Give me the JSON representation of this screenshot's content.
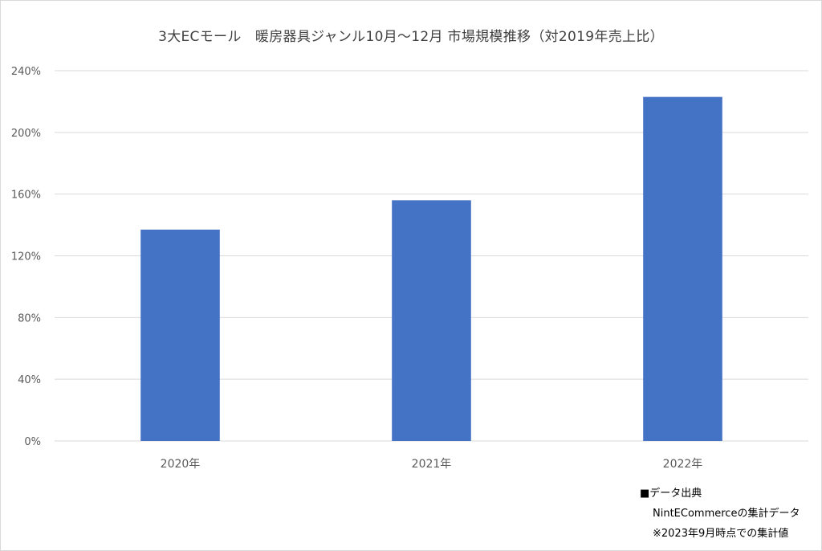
{
  "chart_data": {
    "type": "bar",
    "title": "3大ECモール　暖房器具ジャンル10月～12月  市場規模推移（対2019年売上比）",
    "categories": [
      "2020年",
      "2021年",
      "2022年"
    ],
    "series": [
      {
        "values": [
          137,
          156,
          223
        ]
      }
    ],
    "y_tick_labels": [
      "0%",
      "40%",
      "80%",
      "120%",
      "160%",
      "200%",
      "240%"
    ],
    "y_ticks": [
      0,
      40,
      80,
      120,
      160,
      200,
      240
    ],
    "ylim": [
      0,
      240
    ],
    "unit": "%",
    "grid": true,
    "legend": "none",
    "bar_color": "#4472C4",
    "grid_color": "#d9d9d9",
    "text_color": "#595959"
  },
  "source": {
    "line1": "■データ出典",
    "line2": "NintECommerceの集計データ",
    "line3": "※2023年9月時点での集計値"
  }
}
